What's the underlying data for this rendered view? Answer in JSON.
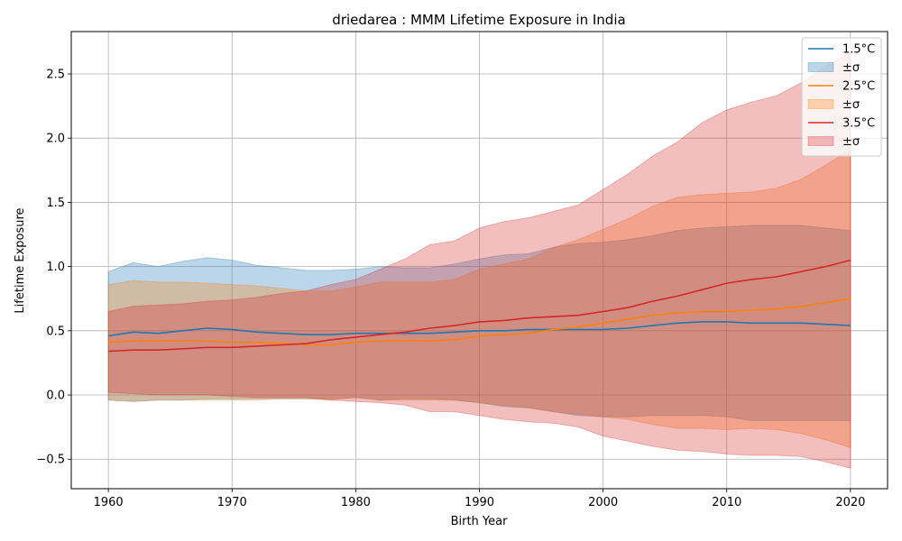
{
  "chart_data": {
    "type": "line",
    "title": "driedarea : MMM Lifetime Exposure in India",
    "xlabel": "Birth Year",
    "ylabel": "Lifetime Exposure",
    "xlim": [
      1957,
      2023
    ],
    "ylim": [
      -0.73,
      2.83
    ],
    "xticks": [
      1960,
      1970,
      1980,
      1990,
      2000,
      2010,
      2020
    ],
    "xtick_labels": [
      "1960",
      "1970",
      "1980",
      "1990",
      "2000",
      "2010",
      "2020"
    ],
    "yticks": [
      -0.5,
      0.0,
      0.5,
      1.0,
      1.5,
      2.0,
      2.5
    ],
    "ytick_labels": [
      "−0.5",
      "0.0",
      "0.5",
      "1.0",
      "1.5",
      "2.0",
      "2.5"
    ],
    "grid": true,
    "legend": "top-right",
    "x": [
      1960,
      1962,
      1964,
      1966,
      1968,
      1970,
      1972,
      1974,
      1976,
      1978,
      1980,
      1982,
      1984,
      1986,
      1988,
      1990,
      1992,
      1994,
      1996,
      1998,
      2000,
      2002,
      2004,
      2006,
      2008,
      2010,
      2012,
      2014,
      2016,
      2018,
      2020
    ],
    "series": [
      {
        "name": "1.5°C",
        "band_label": "±σ",
        "color": "#1f77b4",
        "mean": [
          0.46,
          0.49,
          0.48,
          0.5,
          0.52,
          0.51,
          0.49,
          0.48,
          0.47,
          0.47,
          0.48,
          0.48,
          0.48,
          0.48,
          0.49,
          0.5,
          0.5,
          0.51,
          0.51,
          0.51,
          0.51,
          0.52,
          0.54,
          0.56,
          0.57,
          0.57,
          0.56,
          0.56,
          0.56,
          0.55,
          0.54
        ],
        "upper": [
          0.96,
          1.03,
          1.0,
          1.04,
          1.07,
          1.05,
          1.01,
          0.99,
          0.97,
          0.97,
          0.98,
          1.0,
          0.99,
          0.99,
          1.02,
          1.06,
          1.09,
          1.1,
          1.15,
          1.18,
          1.19,
          1.21,
          1.24,
          1.28,
          1.3,
          1.31,
          1.32,
          1.32,
          1.32,
          1.3,
          1.28
        ],
        "lower": [
          -0.04,
          -0.05,
          -0.04,
          -0.04,
          -0.03,
          -0.03,
          -0.03,
          -0.03,
          -0.03,
          -0.03,
          -0.02,
          -0.04,
          -0.03,
          -0.03,
          -0.04,
          -0.06,
          -0.09,
          -0.1,
          -0.13,
          -0.16,
          -0.17,
          -0.17,
          -0.16,
          -0.16,
          -0.16,
          -0.17,
          -0.2,
          -0.2,
          -0.2,
          -0.2,
          -0.2
        ]
      },
      {
        "name": "2.5°C",
        "band_label": "±σ",
        "color": "#ff7f0e",
        "mean": [
          0.41,
          0.42,
          0.42,
          0.42,
          0.42,
          0.41,
          0.41,
          0.4,
          0.39,
          0.39,
          0.41,
          0.42,
          0.42,
          0.42,
          0.43,
          0.46,
          0.47,
          0.48,
          0.51,
          0.53,
          0.56,
          0.59,
          0.62,
          0.64,
          0.65,
          0.65,
          0.66,
          0.67,
          0.69,
          0.72,
          0.75
        ],
        "upper": [
          0.86,
          0.89,
          0.88,
          0.88,
          0.87,
          0.86,
          0.85,
          0.83,
          0.81,
          0.81,
          0.84,
          0.88,
          0.88,
          0.88,
          0.9,
          0.98,
          1.02,
          1.06,
          1.15,
          1.21,
          1.29,
          1.37,
          1.47,
          1.54,
          1.56,
          1.57,
          1.58,
          1.61,
          1.68,
          1.79,
          1.91
        ],
        "lower": [
          -0.04,
          -0.05,
          -0.04,
          -0.04,
          -0.04,
          -0.04,
          -0.04,
          -0.03,
          -0.03,
          -0.04,
          -0.02,
          -0.04,
          -0.04,
          -0.04,
          -0.04,
          -0.06,
          -0.08,
          -0.1,
          -0.13,
          -0.15,
          -0.17,
          -0.19,
          -0.23,
          -0.26,
          -0.26,
          -0.27,
          -0.26,
          -0.27,
          -0.3,
          -0.35,
          -0.41
        ]
      },
      {
        "name": "3.5°C",
        "band_label": "±σ",
        "color": "#d62728",
        "mean": [
          0.34,
          0.35,
          0.35,
          0.36,
          0.37,
          0.37,
          0.38,
          0.39,
          0.4,
          0.43,
          0.45,
          0.47,
          0.49,
          0.52,
          0.54,
          0.57,
          0.58,
          0.6,
          0.61,
          0.62,
          0.65,
          0.68,
          0.73,
          0.77,
          0.82,
          0.87,
          0.9,
          0.92,
          0.96,
          1.0,
          1.05
        ],
        "upper": [
          0.65,
          0.69,
          0.7,
          0.71,
          0.73,
          0.74,
          0.76,
          0.79,
          0.81,
          0.86,
          0.9,
          0.98,
          1.06,
          1.17,
          1.2,
          1.3,
          1.35,
          1.38,
          1.43,
          1.48,
          1.6,
          1.72,
          1.86,
          1.97,
          2.12,
          2.22,
          2.28,
          2.33,
          2.43,
          2.56,
          2.67
        ],
        "lower": [
          0.02,
          0.01,
          0.0,
          0.0,
          0.0,
          -0.01,
          -0.02,
          -0.02,
          -0.02,
          -0.04,
          -0.05,
          -0.06,
          -0.08,
          -0.13,
          -0.13,
          -0.16,
          -0.19,
          -0.21,
          -0.22,
          -0.25,
          -0.32,
          -0.36,
          -0.4,
          -0.43,
          -0.44,
          -0.46,
          -0.47,
          -0.47,
          -0.48,
          -0.52,
          -0.57
        ]
      }
    ]
  }
}
